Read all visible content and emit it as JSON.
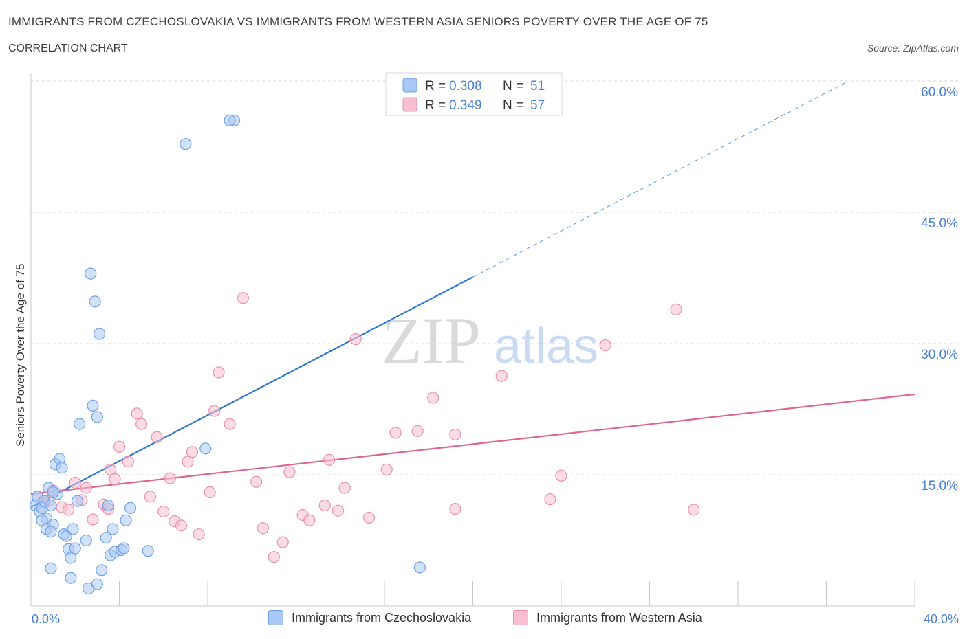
{
  "header": {
    "title": "IMMIGRANTS FROM CZECHOSLOVAKIA VS IMMIGRANTS FROM WESTERN ASIA SENIORS POVERTY OVER THE AGE OF 75",
    "subtitle": "CORRELATION CHART",
    "source": "Source: ZipAtlas.com"
  },
  "watermark": {
    "zip": "ZIP",
    "atlas": "atlas"
  },
  "colors": {
    "blue_fill": "#a9c8f5",
    "blue_stroke": "#6f9fe0",
    "blue_line": "#2f78d0",
    "pink_fill": "#f7bfd0",
    "pink_stroke": "#e98fac",
    "pink_line": "#e0648f",
    "axis_text": "#4a7fd4",
    "grid": "#d8d8d8"
  },
  "chart_data": {
    "type": "scatter",
    "xlabel": "",
    "ylabel": "Seniors Poverty Over the Age of 75",
    "xlim": [
      0,
      40
    ],
    "ylim": [
      0,
      60
    ],
    "x_tick_labels": [
      "0.0%",
      "40.0%"
    ],
    "y_tick_labels": [
      "15.0%",
      "30.0%",
      "45.0%",
      "60.0%"
    ],
    "y_ticks": [
      15,
      30,
      45,
      60
    ],
    "grid": true,
    "legend": [
      {
        "r_label": "R =",
        "r_value": "0.308",
        "n_label": "N =",
        "n_value": "51"
      },
      {
        "r_label": "R =",
        "r_value": "0.349",
        "n_label": "N =",
        "n_value": "57"
      }
    ],
    "series": [
      {
        "name": "Immigrants from Czechoslovakia",
        "color": "#a9c8f5",
        "points": [
          [
            0.2,
            11.5
          ],
          [
            0.3,
            12.5
          ],
          [
            0.4,
            10.8
          ],
          [
            0.5,
            11.2
          ],
          [
            0.6,
            12.0
          ],
          [
            0.7,
            10.0
          ],
          [
            0.5,
            9.8
          ],
          [
            0.8,
            13.5
          ],
          [
            0.9,
            11.5
          ],
          [
            1.0,
            9.3
          ],
          [
            0.7,
            8.8
          ],
          [
            0.9,
            8.5
          ],
          [
            1.2,
            12.8
          ],
          [
            1.1,
            16.2
          ],
          [
            1.3,
            16.8
          ],
          [
            1.4,
            15.8
          ],
          [
            1.5,
            8.2
          ],
          [
            1.6,
            8.0
          ],
          [
            1.7,
            6.5
          ],
          [
            1.8,
            5.5
          ],
          [
            1.9,
            8.8
          ],
          [
            2.0,
            6.6
          ],
          [
            2.2,
            20.8
          ],
          [
            2.1,
            12.0
          ],
          [
            0.9,
            4.3
          ],
          [
            1.8,
            3.2
          ],
          [
            2.6,
            2.0
          ],
          [
            3.0,
            2.5
          ],
          [
            3.2,
            4.1
          ],
          [
            3.4,
            7.8
          ],
          [
            3.6,
            5.8
          ],
          [
            3.8,
            6.2
          ],
          [
            4.1,
            6.4
          ],
          [
            4.3,
            9.8
          ],
          [
            3.5,
            11.5
          ],
          [
            4.5,
            11.2
          ],
          [
            4.2,
            6.6
          ],
          [
            5.3,
            6.3
          ],
          [
            2.8,
            22.9
          ],
          [
            3.0,
            21.6
          ],
          [
            3.1,
            31.1
          ],
          [
            2.9,
            34.8
          ],
          [
            2.7,
            38.0
          ],
          [
            2.5,
            7.5
          ],
          [
            3.7,
            8.8
          ],
          [
            7.0,
            52.8
          ],
          [
            9.2,
            55.5
          ],
          [
            9.0,
            55.5
          ],
          [
            7.9,
            18.0
          ],
          [
            17.6,
            4.4
          ],
          [
            1.0,
            13.0
          ]
        ]
      },
      {
        "name": "Immigrants from Western Asia",
        "color": "#f7bfd0",
        "points": [
          [
            0.3,
            12.5
          ],
          [
            0.6,
            11.8
          ],
          [
            0.8,
            12.0
          ],
          [
            1.0,
            13.2
          ],
          [
            1.4,
            11.3
          ],
          [
            1.7,
            11.0
          ],
          [
            2.0,
            14.1
          ],
          [
            2.3,
            12.1
          ],
          [
            2.5,
            13.5
          ],
          [
            2.8,
            9.9
          ],
          [
            3.3,
            11.6
          ],
          [
            3.5,
            11.1
          ],
          [
            3.6,
            15.6
          ],
          [
            3.8,
            14.5
          ],
          [
            4.0,
            18.2
          ],
          [
            4.4,
            16.5
          ],
          [
            4.8,
            22.0
          ],
          [
            5.0,
            20.8
          ],
          [
            5.4,
            12.5
          ],
          [
            5.7,
            19.3
          ],
          [
            6.0,
            10.8
          ],
          [
            6.3,
            14.6
          ],
          [
            6.5,
            9.7
          ],
          [
            6.8,
            9.2
          ],
          [
            7.1,
            16.5
          ],
          [
            7.3,
            17.6
          ],
          [
            7.6,
            8.2
          ],
          [
            8.1,
            13.0
          ],
          [
            8.3,
            22.3
          ],
          [
            8.5,
            26.7
          ],
          [
            9.0,
            20.8
          ],
          [
            9.6,
            35.2
          ],
          [
            10.2,
            14.2
          ],
          [
            10.5,
            8.9
          ],
          [
            11.0,
            5.6
          ],
          [
            11.4,
            7.3
          ],
          [
            11.7,
            15.3
          ],
          [
            12.3,
            10.4
          ],
          [
            12.6,
            9.8
          ],
          [
            13.3,
            11.5
          ],
          [
            13.5,
            16.7
          ],
          [
            13.9,
            10.9
          ],
          [
            14.2,
            13.5
          ],
          [
            14.7,
            30.5
          ],
          [
            15.3,
            10.1
          ],
          [
            16.1,
            15.6
          ],
          [
            16.5,
            19.8
          ],
          [
            17.5,
            20.0
          ],
          [
            18.2,
            23.8
          ],
          [
            19.2,
            19.6
          ],
          [
            19.2,
            11.1
          ],
          [
            21.3,
            26.3
          ],
          [
            23.5,
            12.2
          ],
          [
            24.0,
            14.9
          ],
          [
            26.0,
            29.8
          ],
          [
            29.2,
            33.9
          ],
          [
            30.0,
            11.0
          ]
        ]
      }
    ],
    "trend_lines": [
      {
        "series": "Immigrants from Czechoslovakia",
        "solid": [
          [
            0,
            11.3
          ],
          [
            20,
            37.6
          ]
        ],
        "dashed": [
          [
            20,
            37.6
          ],
          [
            37,
            60
          ]
        ]
      },
      {
        "series": "Immigrants from Western Asia",
        "solid": [
          [
            0,
            12.8
          ],
          [
            40,
            24.2
          ]
        ]
      }
    ]
  }
}
